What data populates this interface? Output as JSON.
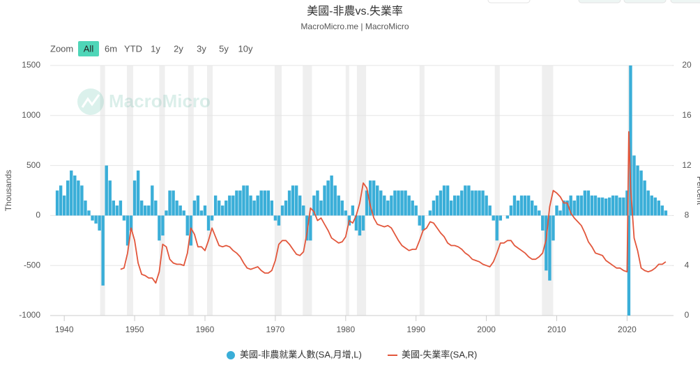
{
  "chart_data": {
    "type": "bar_line",
    "title": "美國-非農vs.失業率",
    "subtitle": "MacroMicro.me | MacroMicro",
    "watermark": "MacroMicro",
    "range_selector": {
      "label": "Zoom",
      "buttons": [
        "All",
        "6m",
        "YTD",
        "1y",
        "2y",
        "3y",
        "5y",
        "10y"
      ],
      "active": 0
    },
    "y_label": "Thousands",
    "y2_label": "Percent",
    "xlim": [
      1938,
      2026.5
    ],
    "xticks": [
      1940,
      1950,
      1960,
      1970,
      1980,
      1990,
      2000,
      2010,
      2020
    ],
    "ylim": [
      -1000,
      1500
    ],
    "yticks": [
      -1000,
      -500,
      0,
      500,
      1000,
      1500
    ],
    "y2lim": [
      0,
      20
    ],
    "y2ticks": [
      0,
      4,
      8,
      12,
      16,
      20
    ],
    "grid": true,
    "recessions": [
      [
        1945.1,
        1945.8
      ],
      [
        1948.9,
        1949.8
      ],
      [
        1953.5,
        1954.3
      ],
      [
        1957.6,
        1958.4
      ],
      [
        1960.3,
        1961.1
      ],
      [
        1969.9,
        1970.9
      ],
      [
        1973.9,
        1975.2
      ],
      [
        1980.0,
        1980.5
      ],
      [
        1981.6,
        1982.9
      ],
      [
        1990.5,
        1991.2
      ],
      [
        2001.2,
        2001.9
      ],
      [
        2007.9,
        2009.5
      ],
      [
        2020.1,
        2020.3
      ]
    ],
    "x": [
      1939,
      1939.5,
      1940,
      1940.5,
      1941,
      1941.5,
      1942,
      1942.5,
      1943,
      1943.5,
      1944,
      1944.5,
      1945,
      1945.5,
      1946,
      1946.5,
      1947,
      1947.5,
      1948,
      1948.5,
      1949,
      1949.5,
      1950,
      1950.5,
      1951,
      1951.5,
      1952,
      1952.5,
      1953,
      1953.5,
      1954,
      1954.5,
      1955,
      1955.5,
      1956,
      1956.5,
      1957,
      1957.5,
      1958,
      1958.5,
      1959,
      1959.5,
      1960,
      1960.5,
      1961,
      1961.5,
      1962,
      1962.5,
      1963,
      1963.5,
      1964,
      1964.5,
      1965,
      1965.5,
      1966,
      1966.5,
      1967,
      1967.5,
      1968,
      1968.5,
      1969,
      1969.5,
      1970,
      1970.5,
      1971,
      1971.5,
      1972,
      1972.5,
      1973,
      1973.5,
      1974,
      1974.5,
      1975,
      1975.5,
      1976,
      1976.5,
      1977,
      1977.5,
      1978,
      1978.5,
      1979,
      1979.5,
      1980,
      1980.5,
      1981,
      1981.5,
      1982,
      1982.5,
      1983,
      1983.5,
      1984,
      1984.5,
      1985,
      1985.5,
      1986,
      1986.5,
      1987,
      1987.5,
      1988,
      1988.5,
      1989,
      1989.5,
      1990,
      1990.5,
      1991,
      1991.5,
      1992,
      1992.5,
      1993,
      1993.5,
      1994,
      1994.5,
      1995,
      1995.5,
      1996,
      1996.5,
      1997,
      1997.5,
      1998,
      1998.5,
      1999,
      1999.5,
      2000,
      2000.5,
      2001,
      2001.5,
      2002,
      2002.5,
      2003,
      2003.5,
      2004,
      2004.5,
      2005,
      2005.5,
      2006,
      2006.5,
      2007,
      2007.5,
      2008,
      2008.5,
      2009,
      2009.5,
      2010,
      2010.5,
      2011,
      2011.5,
      2012,
      2012.5,
      2013,
      2013.5,
      2014,
      2014.5,
      2015,
      2015.5,
      2016,
      2016.5,
      2017,
      2017.5,
      2018,
      2018.5,
      2019,
      2019.5,
      2020,
      2020.25,
      2020.5,
      2021,
      2021.5,
      2022,
      2022.5,
      2023,
      2023.5,
      2024,
      2024.5,
      2025,
      2025.5
    ],
    "series": [
      {
        "name": "美國-非農就業人數(SA,月增,L)",
        "color": "#3aaed8",
        "kind": "bar",
        "axis": "y",
        "values": [
          250,
          300,
          200,
          350,
          450,
          400,
          350,
          300,
          150,
          50,
          -50,
          -80,
          -150,
          -700,
          500,
          350,
          150,
          100,
          150,
          -50,
          -300,
          -150,
          350,
          450,
          150,
          100,
          100,
          300,
          150,
          -250,
          -200,
          50,
          250,
          250,
          150,
          100,
          50,
          -200,
          -300,
          150,
          200,
          50,
          100,
          -150,
          -50,
          200,
          150,
          100,
          150,
          200,
          200,
          250,
          250,
          300,
          300,
          200,
          150,
          200,
          250,
          250,
          250,
          150,
          -50,
          -100,
          100,
          150,
          250,
          300,
          300,
          200,
          100,
          -250,
          -250,
          200,
          250,
          150,
          300,
          350,
          400,
          300,
          200,
          150,
          50,
          -100,
          100,
          -150,
          -200,
          -150,
          250,
          350,
          350,
          300,
          250,
          200,
          150,
          200,
          250,
          250,
          250,
          250,
          200,
          150,
          100,
          -100,
          -150,
          0,
          50,
          150,
          200,
          250,
          300,
          300,
          150,
          200,
          200,
          250,
          300,
          300,
          250,
          250,
          250,
          250,
          200,
          100,
          -50,
          -250,
          -50,
          0,
          -30,
          100,
          200,
          150,
          200,
          200,
          200,
          150,
          100,
          50,
          -150,
          -550,
          -650,
          -250,
          100,
          50,
          150,
          150,
          200,
          150,
          200,
          200,
          250,
          250,
          200,
          200,
          180,
          180,
          170,
          180,
          200,
          200,
          180,
          180,
          250,
          -1000,
          1500,
          600,
          500,
          450,
          350,
          250,
          200,
          180,
          150,
          100,
          50
        ]
      },
      {
        "name": "美國-失業率(SA,R)",
        "color": "#e2563b",
        "kind": "line",
        "axis": "y2",
        "values": [
          null,
          null,
          null,
          null,
          null,
          null,
          null,
          null,
          null,
          null,
          null,
          null,
          null,
          null,
          null,
          null,
          null,
          null,
          3.7,
          3.8,
          5.0,
          7.0,
          6.0,
          4.2,
          3.3,
          3.2,
          3.0,
          3.0,
          2.6,
          3.5,
          5.7,
          5.5,
          4.5,
          4.2,
          4.1,
          4.1,
          4.0,
          5.0,
          7.0,
          6.5,
          5.5,
          5.5,
          5.2,
          6.0,
          7.0,
          6.3,
          5.6,
          5.5,
          5.6,
          5.5,
          5.2,
          5.0,
          4.7,
          4.2,
          3.8,
          3.7,
          3.8,
          3.9,
          3.6,
          3.4,
          3.4,
          3.6,
          4.4,
          5.7,
          6.0,
          6.0,
          5.7,
          5.3,
          4.9,
          4.8,
          5.1,
          6.6,
          8.6,
          8.3,
          7.6,
          7.8,
          7.3,
          6.8,
          6.2,
          6.0,
          5.8,
          5.9,
          6.3,
          7.6,
          7.4,
          8.0,
          9.0,
          10.6,
          10.2,
          8.8,
          7.8,
          7.3,
          7.2,
          7.1,
          7.2,
          7.0,
          6.5,
          6.0,
          5.6,
          5.4,
          5.2,
          5.3,
          5.3,
          6.0,
          6.8,
          7.0,
          7.5,
          7.4,
          7.0,
          6.6,
          6.3,
          5.8,
          5.6,
          5.6,
          5.5,
          5.3,
          5.0,
          4.8,
          4.5,
          4.4,
          4.3,
          4.1,
          4.0,
          3.9,
          4.3,
          5.0,
          5.8,
          5.8,
          6.0,
          6.0,
          5.6,
          5.4,
          5.2,
          5.0,
          4.7,
          4.5,
          4.5,
          4.7,
          5.0,
          6.1,
          8.7,
          10.0,
          9.8,
          9.5,
          9.0,
          9.0,
          8.2,
          7.8,
          7.5,
          7.2,
          6.6,
          5.9,
          5.5,
          5.0,
          4.9,
          4.8,
          4.4,
          4.2,
          4.0,
          3.8,
          3.8,
          3.6,
          3.5,
          14.7,
          10.2,
          6.2,
          5.2,
          3.8,
          3.6,
          3.5,
          3.6,
          3.8,
          4.1,
          4.1,
          4.3
        ]
      }
    ]
  }
}
